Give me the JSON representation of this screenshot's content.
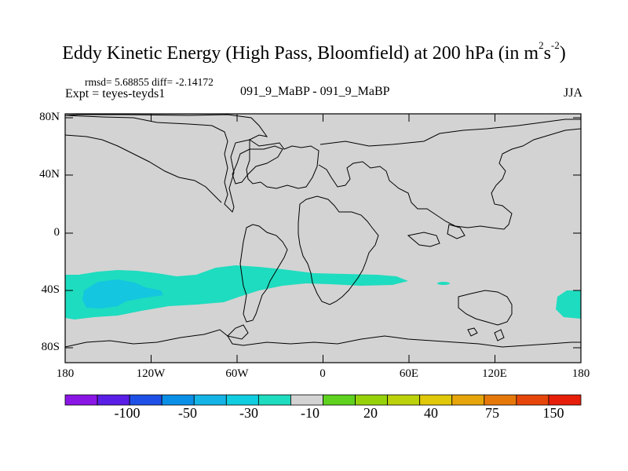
{
  "title": {
    "main": "Eddy Kinetic Energy (High Pass, Bloomfield) at 200 hPa (in m",
    "sup1": "2",
    "mid": "s",
    "sup2": "-2",
    "end": ")"
  },
  "stats_line": "rmsd= 5.68855  diff= -2.14172",
  "experiment": "Expt = teyes-teyds1",
  "case_label": "091_9_MaBP - 091_9_MaBP",
  "season": "JJA",
  "axes": {
    "y_labels": [
      "80N",
      "40N",
      "0",
      "40S",
      "80S"
    ],
    "x_labels": [
      "180",
      "120W",
      "60W",
      "0",
      "60E",
      "120E",
      "180"
    ]
  },
  "colorbar": {
    "labels": [
      "-100",
      "-50",
      "-30",
      "-10",
      "20",
      "40",
      "75",
      "150"
    ],
    "colors": [
      "#8a16e6",
      "#5a1ee6",
      "#1e4fe6",
      "#0a8fe6",
      "#14b4e6",
      "#10cde0",
      "#1edcbf",
      "#d3d3d3",
      "#5ed21e",
      "#96d20a",
      "#bcd20a",
      "#e0c80a",
      "#e6a50a",
      "#e6780a",
      "#e6460a",
      "#e61e0a"
    ]
  },
  "colors": {
    "land_background": "#d3d3d3",
    "band_light": "#1edcbf",
    "band_dark": "#14c6e0",
    "coast": "#000000"
  }
}
